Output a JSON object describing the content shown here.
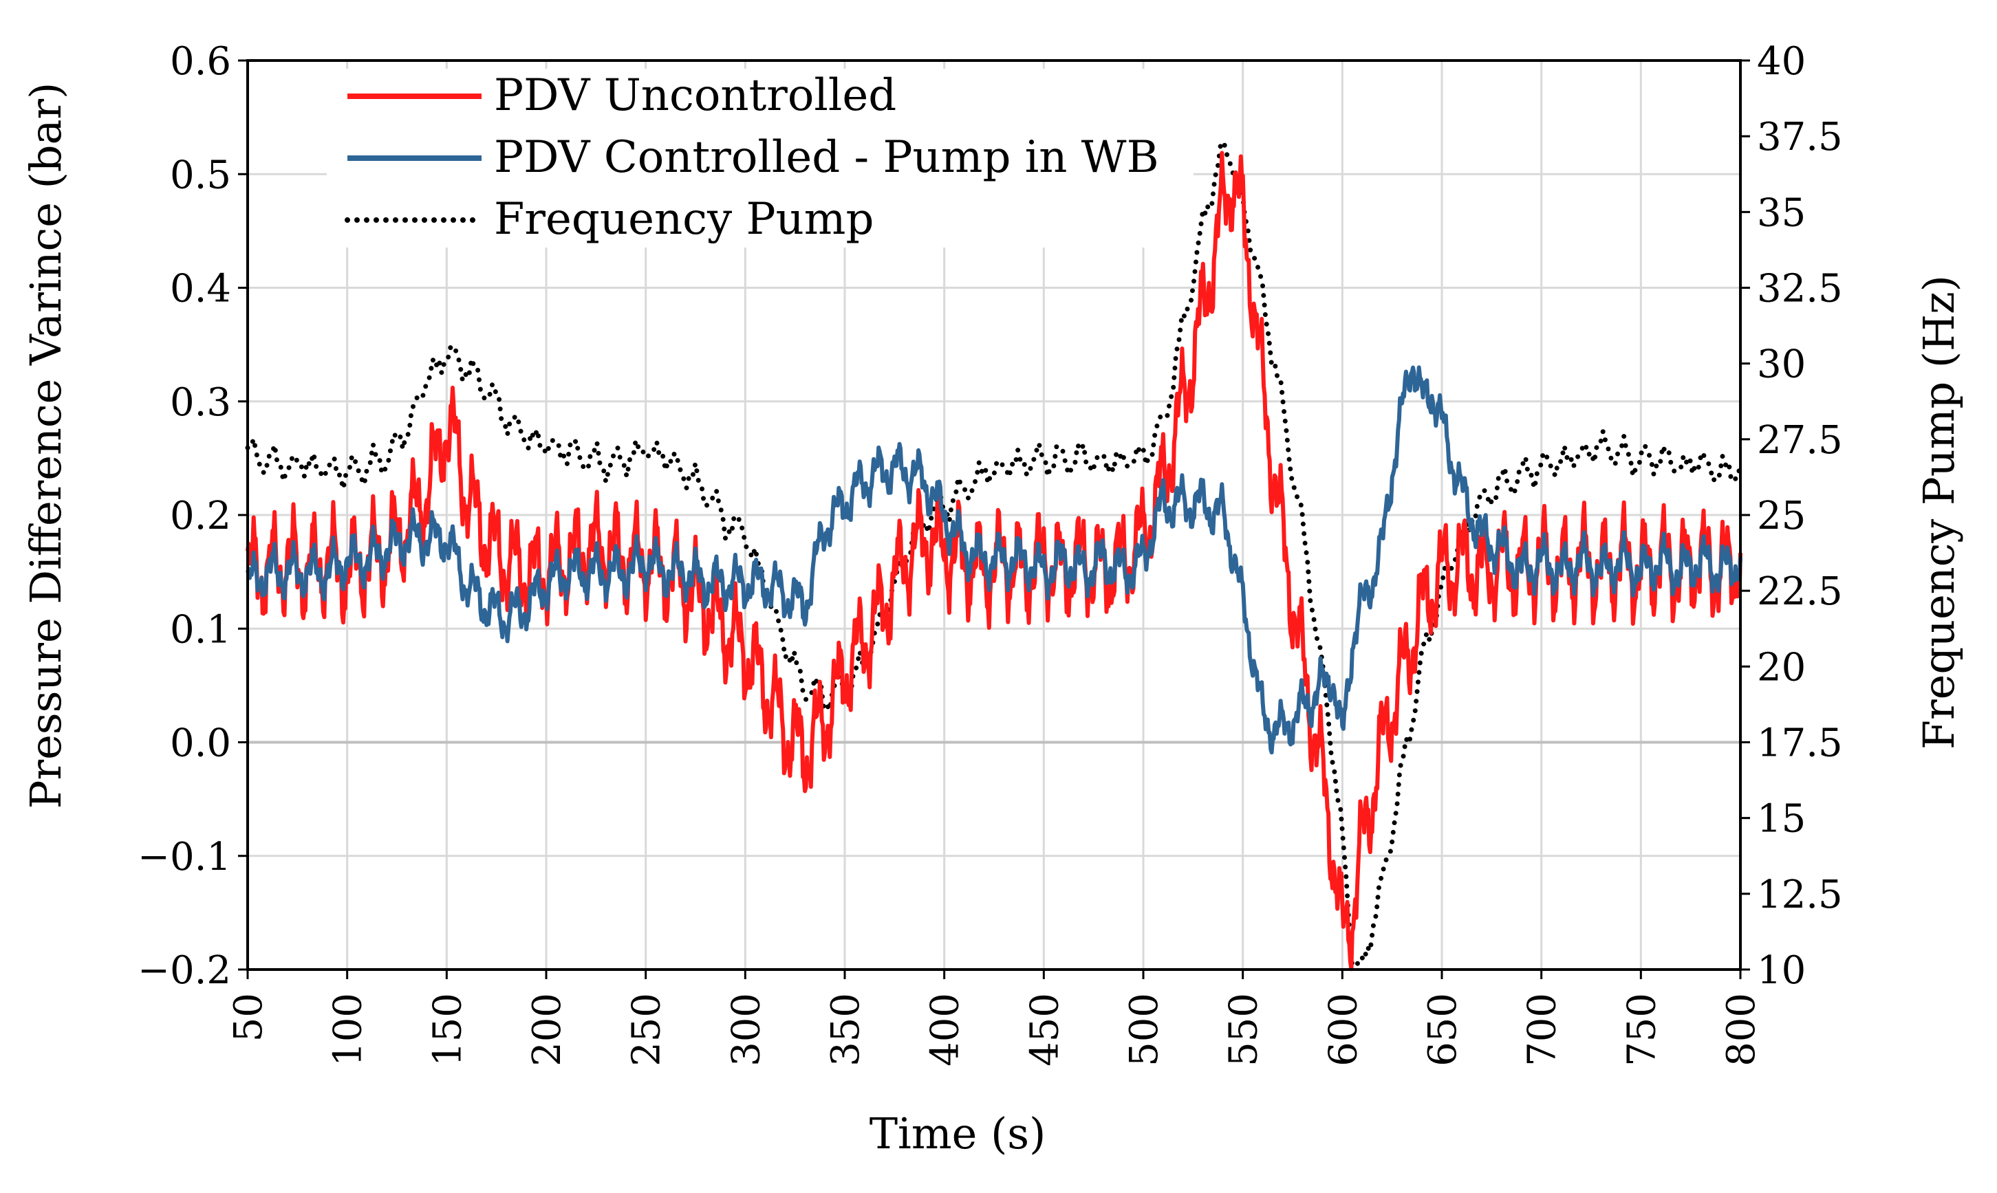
{
  "chart_data": {
    "type": "line",
    "title": "",
    "xlabel": "Time (s)",
    "ylabel": "Pressure Difference Varince (bar)",
    "y2label": "Frequency Pump (Hz)",
    "xlim": [
      50,
      800
    ],
    "ylim": [
      -0.2,
      0.6
    ],
    "y2lim": [
      10,
      40
    ],
    "x_ticks": [
      "50",
      "100",
      "150",
      "200",
      "250",
      "300",
      "350",
      "400",
      "450",
      "500",
      "550",
      "600",
      "650",
      "700",
      "750",
      "800"
    ],
    "y_ticks": [
      "−0.2",
      "−0.1",
      "0.0",
      "0.1",
      "0.2",
      "0.3",
      "0.4",
      "0.5",
      "0.6"
    ],
    "y2_ticks": [
      "10",
      "12.5",
      "15",
      "17.5",
      "20",
      "22.5",
      "25",
      "27.5",
      "30",
      "32.5",
      "35",
      "37.5",
      "40"
    ],
    "grid": true,
    "legend_position": "top-left",
    "series": [
      {
        "name": "PDV Uncontrolled",
        "axis": "left",
        "color": "#ff1a1a",
        "style": "solid",
        "oscillation": 0.05,
        "x": [
          50,
          60,
          70,
          80,
          90,
          100,
          110,
          120,
          130,
          140,
          150,
          155,
          160,
          170,
          180,
          190,
          200,
          210,
          220,
          230,
          240,
          250,
          260,
          270,
          280,
          290,
          300,
          310,
          320,
          325,
          330,
          340,
          350,
          360,
          370,
          380,
          390,
          400,
          410,
          420,
          430,
          440,
          450,
          460,
          470,
          480,
          490,
          500,
          510,
          520,
          530,
          540,
          545,
          550,
          555,
          560,
          570,
          580,
          590,
          595,
          600,
          605,
          610,
          620,
          630,
          640,
          650,
          660,
          670,
          680,
          690,
          700,
          710,
          720,
          730,
          740,
          750,
          760,
          770,
          780,
          790,
          800
        ],
        "y": [
          0.15,
          0.15,
          0.16,
          0.15,
          0.16,
          0.15,
          0.16,
          0.17,
          0.19,
          0.22,
          0.28,
          0.26,
          0.22,
          0.18,
          0.16,
          0.15,
          0.15,
          0.16,
          0.17,
          0.17,
          0.16,
          0.16,
          0.15,
          0.14,
          0.12,
          0.1,
          0.08,
          0.05,
          0.01,
          0.0,
          -0.01,
          0.02,
          0.06,
          0.09,
          0.12,
          0.16,
          0.18,
          0.17,
          0.16,
          0.15,
          0.16,
          0.15,
          0.16,
          0.15,
          0.16,
          0.15,
          0.16,
          0.18,
          0.23,
          0.3,
          0.38,
          0.47,
          0.5,
          0.46,
          0.4,
          0.31,
          0.18,
          0.07,
          -0.03,
          -0.09,
          -0.17,
          -0.15,
          -0.09,
          0.0,
          0.06,
          0.12,
          0.15,
          0.16,
          0.15,
          0.16,
          0.15,
          0.16,
          0.15,
          0.16,
          0.15,
          0.16,
          0.15,
          0.16,
          0.15,
          0.16,
          0.15,
          0.16
        ]
      },
      {
        "name": "PDV Controlled - Pump in WB",
        "axis": "left",
        "color": "#2e6597",
        "style": "solid",
        "oscillation": 0.025,
        "x": [
          50,
          60,
          70,
          80,
          90,
          100,
          110,
          120,
          130,
          140,
          150,
          155,
          160,
          170,
          180,
          190,
          200,
          210,
          220,
          230,
          240,
          250,
          260,
          270,
          280,
          290,
          300,
          310,
          320,
          330,
          340,
          350,
          360,
          370,
          380,
          390,
          400,
          410,
          420,
          430,
          440,
          450,
          460,
          470,
          480,
          490,
          500,
          505,
          510,
          520,
          530,
          540,
          545,
          550,
          555,
          560,
          570,
          580,
          590,
          595,
          600,
          605,
          610,
          620,
          625,
          630,
          635,
          640,
          645,
          650,
          660,
          670,
          680,
          690,
          700,
          710,
          720,
          730,
          740,
          750,
          760,
          770,
          780,
          790,
          800
        ],
        "y": [
          0.14,
          0.15,
          0.15,
          0.15,
          0.15,
          0.16,
          0.16,
          0.17,
          0.18,
          0.18,
          0.18,
          0.16,
          0.14,
          0.12,
          0.11,
          0.12,
          0.14,
          0.15,
          0.15,
          0.15,
          0.15,
          0.16,
          0.15,
          0.15,
          0.14,
          0.14,
          0.14,
          0.14,
          0.13,
          0.12,
          0.19,
          0.21,
          0.23,
          0.24,
          0.24,
          0.23,
          0.2,
          0.17,
          0.16,
          0.16,
          0.16,
          0.15,
          0.16,
          0.15,
          0.16,
          0.15,
          0.16,
          0.19,
          0.21,
          0.21,
          0.21,
          0.2,
          0.17,
          0.12,
          0.08,
          0.02,
          0.01,
          0.03,
          0.05,
          0.06,
          0.0,
          0.09,
          0.12,
          0.17,
          0.24,
          0.29,
          0.34,
          0.3,
          0.31,
          0.28,
          0.22,
          0.18,
          0.17,
          0.15,
          0.16,
          0.15,
          0.16,
          0.15,
          0.16,
          0.15,
          0.16,
          0.15,
          0.16,
          0.15,
          0.16
        ]
      },
      {
        "name": "Frequency Pump",
        "axis": "right",
        "color": "#000000",
        "style": "dotted",
        "oscillation": 0.6,
        "x": [
          50,
          60,
          70,
          80,
          90,
          100,
          110,
          120,
          130,
          140,
          150,
          155,
          160,
          170,
          180,
          190,
          200,
          210,
          220,
          230,
          240,
          250,
          260,
          270,
          280,
          290,
          300,
          310,
          320,
          330,
          340,
          350,
          360,
          370,
          380,
          390,
          400,
          410,
          420,
          430,
          440,
          450,
          460,
          470,
          480,
          490,
          500,
          510,
          520,
          530,
          540,
          545,
          550,
          560,
          570,
          580,
          590,
          600,
          605,
          610,
          620,
          630,
          640,
          650,
          660,
          670,
          680,
          690,
          700,
          710,
          720,
          730,
          740,
          750,
          760,
          770,
          780,
          790,
          800
        ],
        "y": [
          27.0,
          26.8,
          26.6,
          26.7,
          26.5,
          26.4,
          26.6,
          26.9,
          27.8,
          29.5,
          30.3,
          30.2,
          29.8,
          29.2,
          28.2,
          27.6,
          27.3,
          27.1,
          26.9,
          26.7,
          26.8,
          27.2,
          26.9,
          26.4,
          25.8,
          24.8,
          24.4,
          22.7,
          20.7,
          19.3,
          19.0,
          19.3,
          20.2,
          21.8,
          23.6,
          24.9,
          25.3,
          25.8,
          26.4,
          26.6,
          26.7,
          26.9,
          26.8,
          26.9,
          26.7,
          26.8,
          26.9,
          28.0,
          31.2,
          34.6,
          37.2,
          36.6,
          35.3,
          32.2,
          28.5,
          24.5,
          19.8,
          14.5,
          10.3,
          10.0,
          12.8,
          16.5,
          20.2,
          22.6,
          24.3,
          25.5,
          26.0,
          26.3,
          26.6,
          26.8,
          27.0,
          27.3,
          27.0,
          26.8,
          26.9,
          26.6,
          26.8,
          26.4,
          26.6
        ]
      }
    ]
  }
}
